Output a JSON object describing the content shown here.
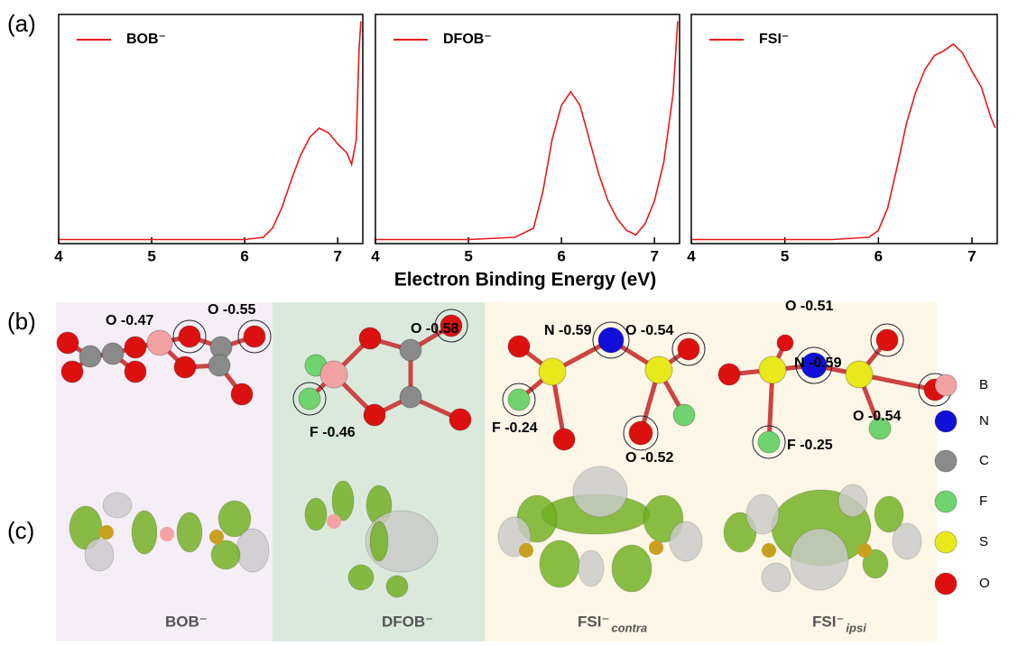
{
  "panel_labels": [
    "(a)",
    "(b)",
    "(c)"
  ],
  "xlabel": "Electron Binding Energy (eV)",
  "chart_data": [
    {
      "type": "line",
      "legend": "upper left",
      "x": [
        4,
        4.5,
        5,
        5.5,
        6,
        6.2,
        6.3,
        6.4,
        6.5,
        6.6,
        6.7,
        6.8,
        6.9,
        7.0,
        7.1,
        7.15,
        7.2,
        7.23,
        7.25
      ],
      "series": [
        {
          "name": "BOB⁻",
          "color": "#e8191b",
          "values": [
            0.01,
            0.01,
            0.01,
            0.01,
            0.01,
            0.02,
            0.06,
            0.15,
            0.27,
            0.38,
            0.46,
            0.5,
            0.48,
            0.43,
            0.39,
            0.34,
            0.45,
            0.85,
            0.97
          ]
        }
      ],
      "xlim": [
        4,
        7.27
      ],
      "xticks": [
        4,
        5,
        6,
        7
      ],
      "ylim": [
        0,
        1
      ]
    },
    {
      "type": "line",
      "legend": "upper left",
      "x": [
        4,
        4.5,
        5,
        5.5,
        5.7,
        5.8,
        5.9,
        6.0,
        6.1,
        6.2,
        6.3,
        6.4,
        6.5,
        6.6,
        6.7,
        6.8,
        6.9,
        7.0,
        7.1,
        7.2,
        7.25
      ],
      "series": [
        {
          "name": "DFOB⁻",
          "color": "#e8191b",
          "values": [
            0.01,
            0.01,
            0.01,
            0.02,
            0.06,
            0.22,
            0.45,
            0.6,
            0.66,
            0.6,
            0.45,
            0.3,
            0.18,
            0.1,
            0.05,
            0.03,
            0.08,
            0.18,
            0.35,
            0.65,
            0.97
          ]
        }
      ],
      "xlim": [
        4,
        7.27
      ],
      "xticks": [
        4,
        5,
        6,
        7
      ],
      "ylim": [
        0,
        1
      ]
    },
    {
      "type": "line",
      "legend": "upper left",
      "x": [
        4,
        4.5,
        5,
        5.5,
        5.9,
        6.0,
        6.1,
        6.2,
        6.3,
        6.4,
        6.5,
        6.6,
        6.7,
        6.8,
        6.9,
        7.0,
        7.1,
        7.2,
        7.25
      ],
      "series": [
        {
          "name": "FSI⁻",
          "color": "#e8191b",
          "values": [
            0.01,
            0.01,
            0.01,
            0.01,
            0.02,
            0.05,
            0.15,
            0.33,
            0.52,
            0.66,
            0.76,
            0.82,
            0.84,
            0.87,
            0.83,
            0.75,
            0.68,
            0.55,
            0.5
          ]
        }
      ],
      "xlim": [
        4,
        7.27
      ],
      "xticks": [
        4,
        5,
        6,
        7
      ],
      "ylim": [
        0,
        1
      ]
    }
  ],
  "molecules": [
    {
      "name": "BOB⁻",
      "charges": [
        "O -0.47",
        "O -0.55"
      ]
    },
    {
      "name": "DFOB⁻",
      "charges": [
        "O -0.58",
        "F -0.46"
      ]
    },
    {
      "name": "FSI⁻",
      "subscript": "contra",
      "charges": [
        "N -0.59",
        "O -0.54",
        "F -0.24",
        "O -0.52"
      ]
    },
    {
      "name": "FSI⁻",
      "subscript": "ipsi",
      "charges": [
        "O -0.51",
        "N -0.59",
        "O -0.54",
        "F -0.25"
      ]
    }
  ],
  "atom_legend": [
    {
      "label": "B",
      "color": "#f2a2a2"
    },
    {
      "label": "N",
      "color": "#1010d8"
    },
    {
      "label": "C",
      "color": "#8a8a8a"
    },
    {
      "label": "F",
      "color": "#6fd46f"
    },
    {
      "label": "S",
      "color": "#e8e81a"
    },
    {
      "label": "O",
      "color": "#dd1010"
    }
  ]
}
